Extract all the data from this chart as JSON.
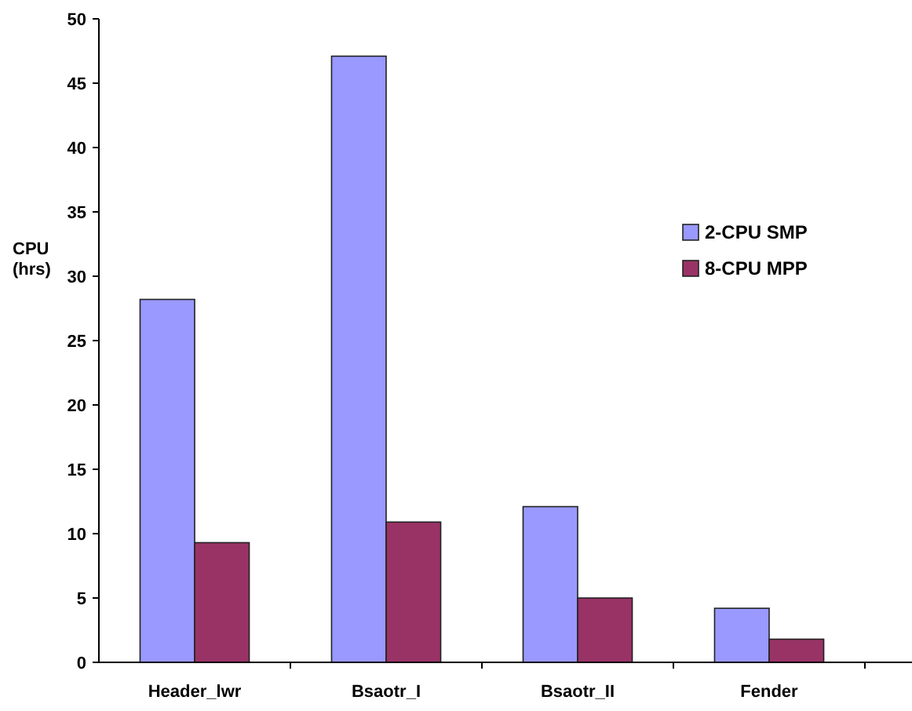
{
  "chart_data": {
    "type": "bar",
    "ylabel": "CPU (hrs)",
    "categories": [
      "Header_lwr",
      "Bsaotr_I",
      "Bsaotr_II",
      "Fender"
    ],
    "series": [
      {
        "name": "2-CPU SMP",
        "color": "#9999ff",
        "values": [
          28.2,
          47.1,
          12.1,
          4.2
        ]
      },
      {
        "name": "8-CPU MPP",
        "color": "#993366",
        "values": [
          9.3,
          10.9,
          5.0,
          1.8
        ]
      }
    ],
    "ylim": [
      0,
      50
    ],
    "yticks": [
      0,
      5,
      10,
      15,
      20,
      25,
      30,
      35,
      40,
      45,
      50
    ],
    "legend": "right",
    "grid": false
  }
}
